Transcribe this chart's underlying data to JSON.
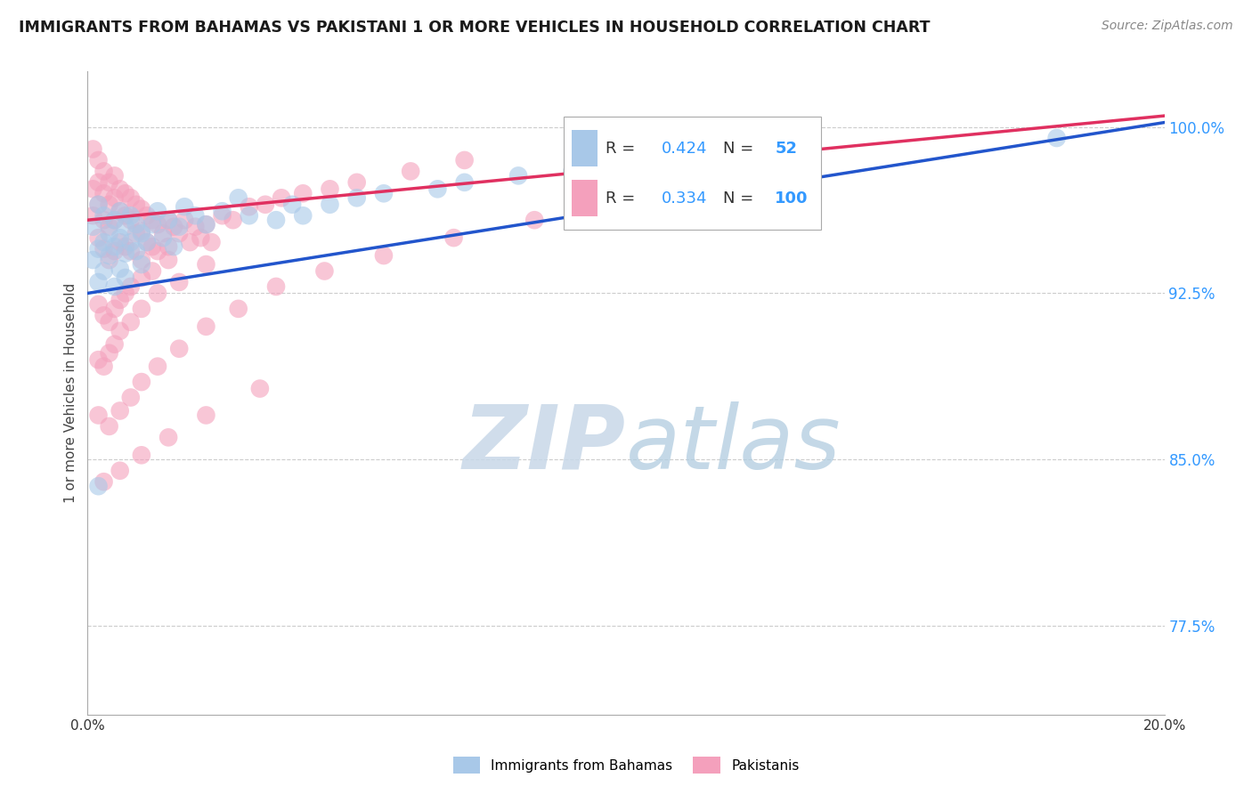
{
  "title": "IMMIGRANTS FROM BAHAMAS VS PAKISTANI 1 OR MORE VEHICLES IN HOUSEHOLD CORRELATION CHART",
  "source": "Source: ZipAtlas.com",
  "ylabel": "1 or more Vehicles in Household",
  "ytick_values": [
    0.775,
    0.85,
    0.925,
    1.0
  ],
  "xlim": [
    0.0,
    0.2
  ],
  "ylim": [
    0.735,
    1.025
  ],
  "legend_entries": [
    {
      "label": "Immigrants from Bahamas",
      "color": "#a8c8e8",
      "line_color": "#2255cc",
      "R": 0.424,
      "N": 52
    },
    {
      "label": "Pakistanis",
      "color": "#f4a0bc",
      "line_color": "#e03060",
      "R": 0.334,
      "N": 100
    }
  ],
  "watermark_zip": "ZIP",
  "watermark_atlas": "atlas",
  "bahamas_x": [
    0.001,
    0.001,
    0.002,
    0.002,
    0.002,
    0.003,
    0.003,
    0.003,
    0.004,
    0.004,
    0.005,
    0.005,
    0.005,
    0.006,
    0.006,
    0.006,
    0.007,
    0.007,
    0.007,
    0.008,
    0.008,
    0.009,
    0.009,
    0.01,
    0.01,
    0.011,
    0.012,
    0.013,
    0.014,
    0.015,
    0.016,
    0.017,
    0.018,
    0.02,
    0.022,
    0.025,
    0.028,
    0.03,
    0.035,
    0.038,
    0.04,
    0.045,
    0.05,
    0.055,
    0.065,
    0.07,
    0.08,
    0.09,
    0.1,
    0.12,
    0.002,
    0.18
  ],
  "bahamas_y": [
    0.955,
    0.94,
    0.965,
    0.945,
    0.93,
    0.96,
    0.948,
    0.935,
    0.952,
    0.942,
    0.958,
    0.946,
    0.928,
    0.962,
    0.95,
    0.936,
    0.955,
    0.943,
    0.932,
    0.96,
    0.948,
    0.956,
    0.944,
    0.952,
    0.938,
    0.948,
    0.956,
    0.962,
    0.95,
    0.958,
    0.946,
    0.955,
    0.964,
    0.96,
    0.956,
    0.962,
    0.968,
    0.96,
    0.958,
    0.965,
    0.96,
    0.965,
    0.968,
    0.97,
    0.972,
    0.975,
    0.978,
    0.98,
    0.982,
    0.985,
    0.838,
    0.995
  ],
  "pakistani_x": [
    0.001,
    0.001,
    0.001,
    0.002,
    0.002,
    0.002,
    0.002,
    0.003,
    0.003,
    0.003,
    0.003,
    0.004,
    0.004,
    0.004,
    0.004,
    0.005,
    0.005,
    0.005,
    0.005,
    0.006,
    0.006,
    0.006,
    0.007,
    0.007,
    0.007,
    0.008,
    0.008,
    0.008,
    0.009,
    0.009,
    0.01,
    0.01,
    0.01,
    0.011,
    0.011,
    0.012,
    0.012,
    0.013,
    0.013,
    0.014,
    0.015,
    0.015,
    0.016,
    0.017,
    0.018,
    0.019,
    0.02,
    0.021,
    0.022,
    0.023,
    0.025,
    0.027,
    0.03,
    0.033,
    0.036,
    0.04,
    0.045,
    0.05,
    0.06,
    0.07,
    0.002,
    0.003,
    0.004,
    0.005,
    0.006,
    0.007,
    0.008,
    0.01,
    0.012,
    0.015,
    0.002,
    0.003,
    0.004,
    0.005,
    0.006,
    0.008,
    0.01,
    0.013,
    0.017,
    0.022,
    0.002,
    0.004,
    0.006,
    0.008,
    0.01,
    0.013,
    0.017,
    0.022,
    0.028,
    0.035,
    0.044,
    0.055,
    0.068,
    0.083,
    0.003,
    0.006,
    0.01,
    0.015,
    0.022,
    0.032
  ],
  "pakistani_y": [
    0.99,
    0.972,
    0.96,
    0.985,
    0.975,
    0.965,
    0.95,
    0.98,
    0.97,
    0.958,
    0.945,
    0.975,
    0.965,
    0.955,
    0.94,
    0.978,
    0.968,
    0.958,
    0.944,
    0.972,
    0.962,
    0.948,
    0.97,
    0.96,
    0.946,
    0.968,
    0.958,
    0.944,
    0.965,
    0.952,
    0.963,
    0.953,
    0.94,
    0.96,
    0.948,
    0.958,
    0.946,
    0.956,
    0.944,
    0.952,
    0.958,
    0.946,
    0.955,
    0.952,
    0.958,
    0.948,
    0.955,
    0.95,
    0.956,
    0.948,
    0.96,
    0.958,
    0.964,
    0.965,
    0.968,
    0.97,
    0.972,
    0.975,
    0.98,
    0.985,
    0.92,
    0.915,
    0.912,
    0.918,
    0.922,
    0.925,
    0.928,
    0.932,
    0.935,
    0.94,
    0.895,
    0.892,
    0.898,
    0.902,
    0.908,
    0.912,
    0.918,
    0.925,
    0.93,
    0.938,
    0.87,
    0.865,
    0.872,
    0.878,
    0.885,
    0.892,
    0.9,
    0.91,
    0.918,
    0.928,
    0.935,
    0.942,
    0.95,
    0.958,
    0.84,
    0.845,
    0.852,
    0.86,
    0.87,
    0.882
  ]
}
